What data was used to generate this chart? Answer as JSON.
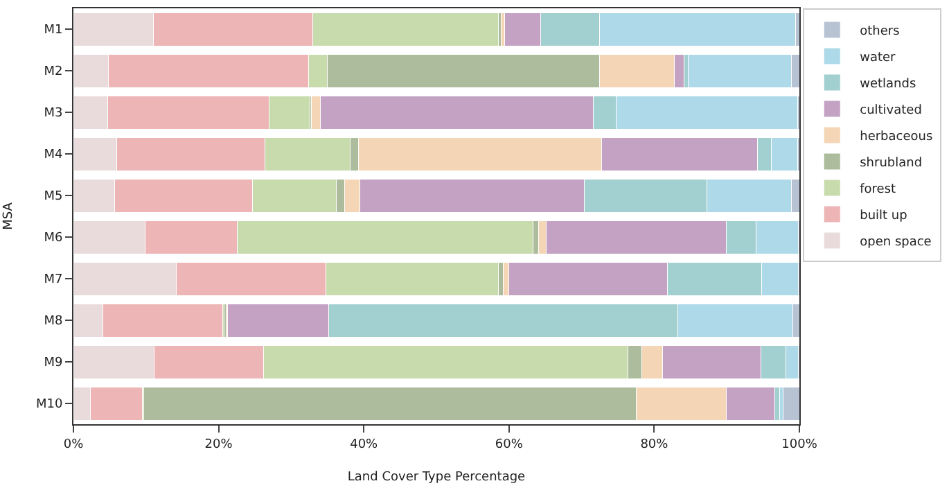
{
  "chart_data": {
    "type": "bar",
    "orientation": "horizontal",
    "stacked": true,
    "xlabel": "Land Cover Type Percentage",
    "ylabel": "MSA",
    "categories": [
      "M1",
      "M2",
      "M3",
      "M4",
      "M5",
      "M6",
      "M7",
      "M8",
      "M9",
      "M10"
    ],
    "xlim": [
      0,
      100
    ],
    "xticks": [
      {
        "value": 0,
        "label": "0%"
      },
      {
        "value": 20,
        "label": "20%"
      },
      {
        "value": 40,
        "label": "40%"
      },
      {
        "value": 60,
        "label": "60%"
      },
      {
        "value": 80,
        "label": "80%"
      },
      {
        "value": 100,
        "label": "100%"
      }
    ],
    "legend": "top right",
    "series": [
      {
        "name": "open space",
        "color": "#e9dbdb",
        "values": [
          11.0,
          4.8,
          4.7,
          6.0,
          5.7,
          9.9,
          14.2,
          4.1,
          11.1,
          2.3
        ]
      },
      {
        "name": "built up",
        "color": "#edb5b6",
        "values": [
          22.0,
          27.6,
          22.3,
          20.4,
          19.0,
          12.7,
          20.6,
          16.5,
          15.1,
          7.2
        ]
      },
      {
        "name": "forest",
        "color": "#c8dbad",
        "values": [
          25.5,
          2.6,
          5.6,
          11.7,
          11.5,
          40.7,
          23.7,
          0.2,
          50.2,
          0.2
        ]
      },
      {
        "name": "shrubland",
        "color": "#adbc9c",
        "values": [
          0.4,
          37.5,
          0.2,
          1.2,
          1.2,
          0.8,
          0.7,
          0.2,
          1.9,
          67.8
        ]
      },
      {
        "name": "herbaceous",
        "color": "#f4d6b6",
        "values": [
          0.5,
          10.3,
          1.2,
          33.5,
          2.1,
          1.0,
          0.8,
          0.2,
          2.9,
          12.4
        ]
      },
      {
        "name": "cultivated",
        "color": "#c4a2c4",
        "values": [
          5.0,
          1.3,
          37.6,
          21.4,
          30.9,
          24.8,
          21.8,
          14.0,
          13.5,
          6.7
        ]
      },
      {
        "name": "wetlands",
        "color": "#a2cfcf",
        "values": [
          8.1,
          0.6,
          3.2,
          1.9,
          16.9,
          4.1,
          13.0,
          48.1,
          3.4,
          0.7
        ]
      },
      {
        "name": "water",
        "color": "#aed9e9",
        "values": [
          27.0,
          14.2,
          25.0,
          3.7,
          11.6,
          5.9,
          5.1,
          15.8,
          1.8,
          0.5
        ]
      },
      {
        "name": "others",
        "color": "#b7c3d3",
        "values": [
          0.5,
          1.1,
          0.2,
          0.2,
          1.1,
          0.1,
          0.1,
          0.9,
          0.1,
          2.2
        ]
      }
    ]
  }
}
